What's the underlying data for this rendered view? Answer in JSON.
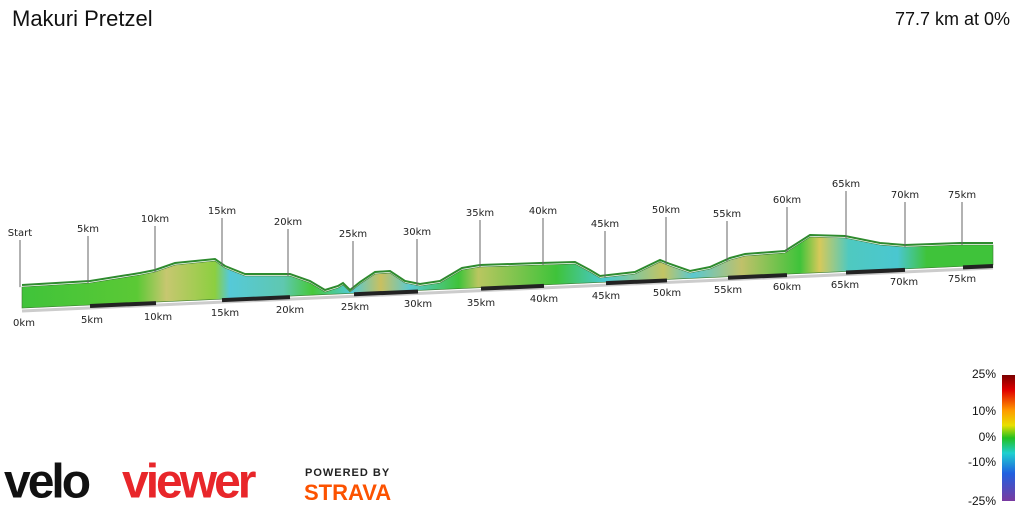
{
  "header": {
    "title": "Makuri Pretzel",
    "summary": "77.7 km at 0%"
  },
  "profile": {
    "top_markers": [
      "Start",
      "5km",
      "10km",
      "15km",
      "20km",
      "25km",
      "30km",
      "35km",
      "40km",
      "45km",
      "50km",
      "55km",
      "60km",
      "65km",
      "70km",
      "75km"
    ],
    "bottom_markers": [
      "0km",
      "5km",
      "10km",
      "15km",
      "20km",
      "25km",
      "30km",
      "35km",
      "40km",
      "45km",
      "50km",
      "55km",
      "60km",
      "65km",
      "70km",
      "75km"
    ]
  },
  "legend": {
    "labels": [
      "25%",
      "10%",
      "0%",
      "-10%",
      "-25%"
    ]
  },
  "branding": {
    "logo_a": "velo",
    "logo_b": "viewer",
    "powered": "POWERED BY",
    "strava": "STRAVA"
  }
}
